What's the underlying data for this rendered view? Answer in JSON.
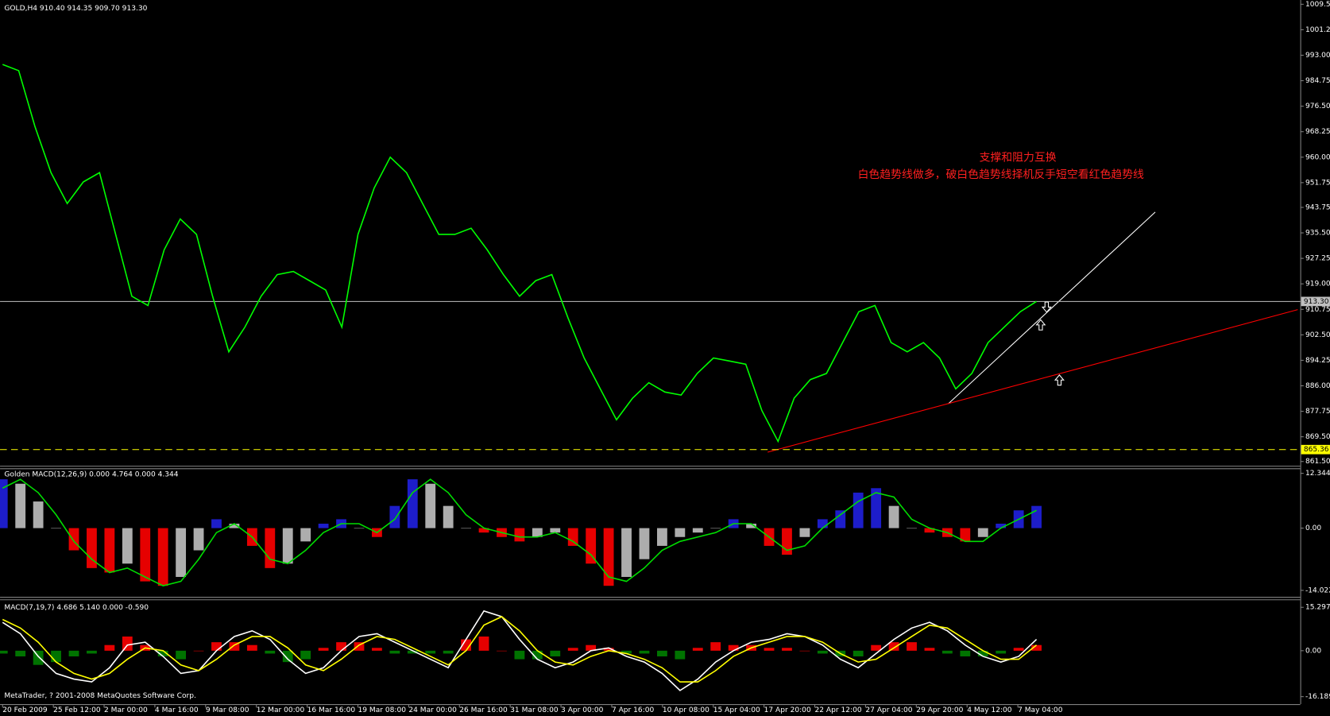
{
  "chart_data": [
    {
      "type": "line",
      "title": "GOLD,H4  910.40 914.35 909.70 913.30",
      "color": "#00ff00",
      "values": [
        990,
        988,
        970,
        955,
        945,
        952,
        955,
        935,
        915,
        912,
        930,
        940,
        935,
        915,
        897,
        905,
        915,
        922,
        923,
        920,
        917,
        905,
        935,
        950,
        960,
        955,
        945,
        935,
        935,
        937,
        930,
        922,
        915,
        920,
        922,
        908,
        895,
        885,
        875,
        882,
        887,
        884,
        883,
        890,
        895,
        894,
        893,
        878,
        868,
        882,
        888,
        890,
        900,
        910,
        912,
        900,
        897,
        900,
        895,
        885,
        890,
        900,
        905,
        910,
        913.3
      ],
      "ylim": [
        860.4,
        1010.6
      ],
      "yticks": [
        {
          "value": 1009.5,
          "label": "1009.50"
        },
        {
          "value": 1001.25,
          "label": "1001.25"
        },
        {
          "value": 993,
          "label": "993.00"
        },
        {
          "value": 984.75,
          "label": "984.75"
        },
        {
          "value": 976.5,
          "label": "976.50"
        },
        {
          "value": 968.25,
          "label": "968.25"
        },
        {
          "value": 960,
          "label": "960.00"
        },
        {
          "value": 951.75,
          "label": "951.75"
        },
        {
          "value": 943.75,
          "label": "943.75"
        },
        {
          "value": 935.5,
          "label": "935.50"
        },
        {
          "value": 927.25,
          "label": "927.25"
        },
        {
          "value": 919,
          "label": "919.00"
        },
        {
          "value": 910.75,
          "label": "910.75"
        },
        {
          "value": 902.5,
          "label": "902.50"
        },
        {
          "value": 894.25,
          "label": "894.25"
        },
        {
          "value": 886,
          "label": "886.00"
        },
        {
          "value": 877.75,
          "label": "877.75"
        },
        {
          "value": 869.5,
          "label": "869.50"
        },
        {
          "value": 861.5,
          "label": "861.50"
        }
      ],
      "price_markers": [
        {
          "value": 913.3,
          "label": "913.30",
          "color": "#c0c0c0"
        },
        {
          "value": 865.36,
          "label": "865.36",
          "color": "#ffff00"
        }
      ],
      "xtick_labels": [
        "20 Feb 2009",
        "25 Feb 12:00",
        "2 Mar 00:00",
        "4 Mar 16:00",
        "9 Mar 08:00",
        "12 Mar 00:00",
        "16 Mar 16:00",
        "19 Mar 08:00",
        "24 Mar 00:00",
        "26 Mar 16:00",
        "31 Mar 08:00",
        "3 Apr 00:00",
        "7 Apr 16:00",
        "10 Apr 08:00",
        "15 Apr 04:00",
        "17 Apr 20:00",
        "22 Apr 12:00",
        "27 Apr 04:00",
        "29 Apr 20:00",
        "4 May 12:00",
        "7 May 04:00"
      ],
      "annotations": [
        "支撑和阻力互换",
        "白色趋势线做多，破白色趋势线择机反手短空看红色趋势线"
      ]
    },
    {
      "type": "macd",
      "title": "Golden MACD(12,26,9) 0.000 4.764 0.000 4.344",
      "ylim": [
        -15.38,
        13.29
      ],
      "yticks": [
        12.344,
        {
          "value": 0,
          "label": "0.00"
        },
        -14.022
      ],
      "histogram": {
        "values": [
          11,
          10,
          6,
          0,
          -5,
          -9,
          -10,
          -8,
          -12,
          -13,
          -11,
          -5,
          2,
          1,
          -4,
          -9,
          -8,
          -3,
          1,
          2,
          0,
          -2,
          5,
          11,
          10,
          5,
          0,
          -1,
          -2,
          -3,
          -2,
          -1,
          -4,
          -8,
          -13,
          -11,
          -7,
          -4,
          -2,
          -1,
          0,
          2,
          1,
          -4,
          -6,
          -2,
          2,
          4,
          8,
          9,
          5,
          0,
          -1,
          -2,
          -3,
          -2,
          1,
          4,
          5
        ],
        "rise_color": "#2020e0",
        "fall_color": "#ff0000",
        "flat_color": "#c0c0c0"
      },
      "lines": [
        {
          "color": "#00dd00",
          "values": [
            9,
            11,
            8,
            3,
            -3,
            -7,
            -10,
            -9,
            -11,
            -13,
            -12,
            -7,
            -1,
            1,
            -2,
            -7,
            -8,
            -5,
            -1,
            1,
            1,
            -1,
            2,
            8,
            11,
            8,
            3,
            0,
            -1,
            -2,
            -2,
            -1,
            -3,
            -6,
            -11,
            -12,
            -9,
            -5,
            -3,
            -2,
            -1,
            1,
            1,
            -2,
            -5,
            -4,
            0,
            3,
            6,
            8,
            7,
            2,
            0,
            -1,
            -3,
            -3,
            0,
            2,
            4
          ]
        }
      ]
    },
    {
      "type": "macd",
      "title": "MACD(7,19,7) 4.686 5.140 0.000 -0.590",
      "ylim": [
        -18.82,
        17.65
      ],
      "yticks": [
        15.297,
        {
          "value": 0,
          "label": "0.00"
        },
        -16.189
      ],
      "histogram": {
        "values": [
          -1,
          -2,
          -5,
          -4,
          -2,
          -1,
          2,
          5,
          2,
          -2,
          -3,
          0,
          3,
          3,
          2,
          -1,
          -4,
          -3,
          1,
          3,
          3,
          1,
          -1,
          -1,
          -1,
          -1,
          4,
          5,
          0,
          -3,
          -3,
          -2,
          1,
          2,
          1,
          -1,
          -1,
          -2,
          -3,
          1,
          3,
          2,
          2,
          1,
          1,
          0,
          -1,
          -2,
          -2,
          2,
          3,
          3,
          1,
          -1,
          -2,
          -2,
          -1,
          1,
          2
        ],
        "pos_color": "#ff0000",
        "neg_color": "#008000"
      },
      "lines": [
        {
          "color": "#ffffff",
          "values": [
            10,
            6,
            -2,
            -8,
            -10,
            -11,
            -6,
            2,
            3,
            -2,
            -8,
            -7,
            0,
            5,
            7,
            4,
            -3,
            -8,
            -6,
            0,
            5,
            6,
            3,
            0,
            -3,
            -6,
            4,
            14,
            12,
            4,
            -3,
            -6,
            -4,
            0,
            1,
            -2,
            -4,
            -8,
            -14,
            -10,
            -4,
            0,
            3,
            4,
            6,
            5,
            2,
            -3,
            -6,
            -1,
            4,
            8,
            10,
            7,
            2,
            -2,
            -4,
            -2,
            4
          ]
        },
        {
          "color": "#ffff00",
          "values": [
            11,
            8,
            3,
            -4,
            -8,
            -10,
            -8,
            -3,
            1,
            0,
            -5,
            -7,
            -3,
            2,
            5,
            5,
            1,
            -5,
            -7,
            -3,
            2,
            5,
            4,
            1,
            -2,
            -5,
            0,
            9,
            12,
            7,
            0,
            -4,
            -5,
            -2,
            0,
            -1,
            -3,
            -6,
            -11,
            -11,
            -7,
            -2,
            1,
            3,
            5,
            5,
            3,
            -1,
            -4,
            -3,
            1,
            5,
            9,
            8,
            4,
            0,
            -3,
            -3,
            2
          ]
        }
      ]
    }
  ],
  "footer": "MetaTrader, ? 2001-2008 MetaQuotes Software Corp."
}
